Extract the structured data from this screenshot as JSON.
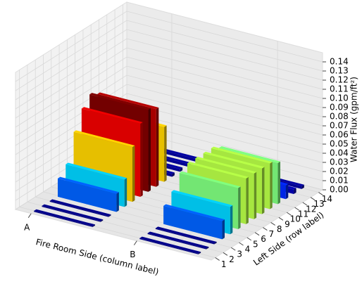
{
  "chart_data": {
    "type": "bar3d",
    "x_label": "Fire Room Side (column label)",
    "y_label": "Left Side (row label)",
    "z_label": "Water Flux (gpm/ft²)",
    "x_categories": [
      "A",
      "B"
    ],
    "y_categories": [
      "1",
      "2",
      "3",
      "4",
      "5",
      "6",
      "7",
      "8",
      "9",
      "10",
      "11",
      "12",
      "13",
      "14"
    ],
    "values": [
      [
        0.001,
        0.001,
        0.001,
        0.02,
        0.03,
        0.06,
        0.08,
        0.09,
        0.085,
        0.06,
        0.003,
        0.003,
        0.003,
        0.003
      ],
      [
        0.001,
        0.001,
        0.001,
        0.02,
        0.03,
        0.045,
        0.05,
        0.05,
        0.05,
        0.05,
        0.045,
        0.015,
        0.005,
        0.003
      ]
    ],
    "colormap": "jet",
    "zlim": [
      0,
      0.15
    ],
    "zticks": [
      {
        "value": 0,
        "label": "0.00"
      },
      {
        "value": 0.01,
        "label": "0.01"
      },
      {
        "value": 0.02,
        "label": "0.02"
      },
      {
        "value": 0.03,
        "label": "0.03"
      },
      {
        "value": 0.04,
        "label": "0.04"
      },
      {
        "value": 0.05,
        "label": "0.05"
      },
      {
        "value": 0.06,
        "label": "0.06"
      },
      {
        "value": 0.07,
        "label": "0.07"
      },
      {
        "value": 0.08,
        "label": "0.08"
      },
      {
        "value": 0.09,
        "label": "0.09"
      },
      {
        "value": 0.1,
        "label": "0.10"
      },
      {
        "value": 0.11,
        "label": "0.11"
      },
      {
        "value": 0.12,
        "label": "0.12"
      },
      {
        "value": 0.13,
        "label": "0.13"
      },
      {
        "value": 0.14,
        "label": "0.14"
      }
    ],
    "grid": true
  }
}
